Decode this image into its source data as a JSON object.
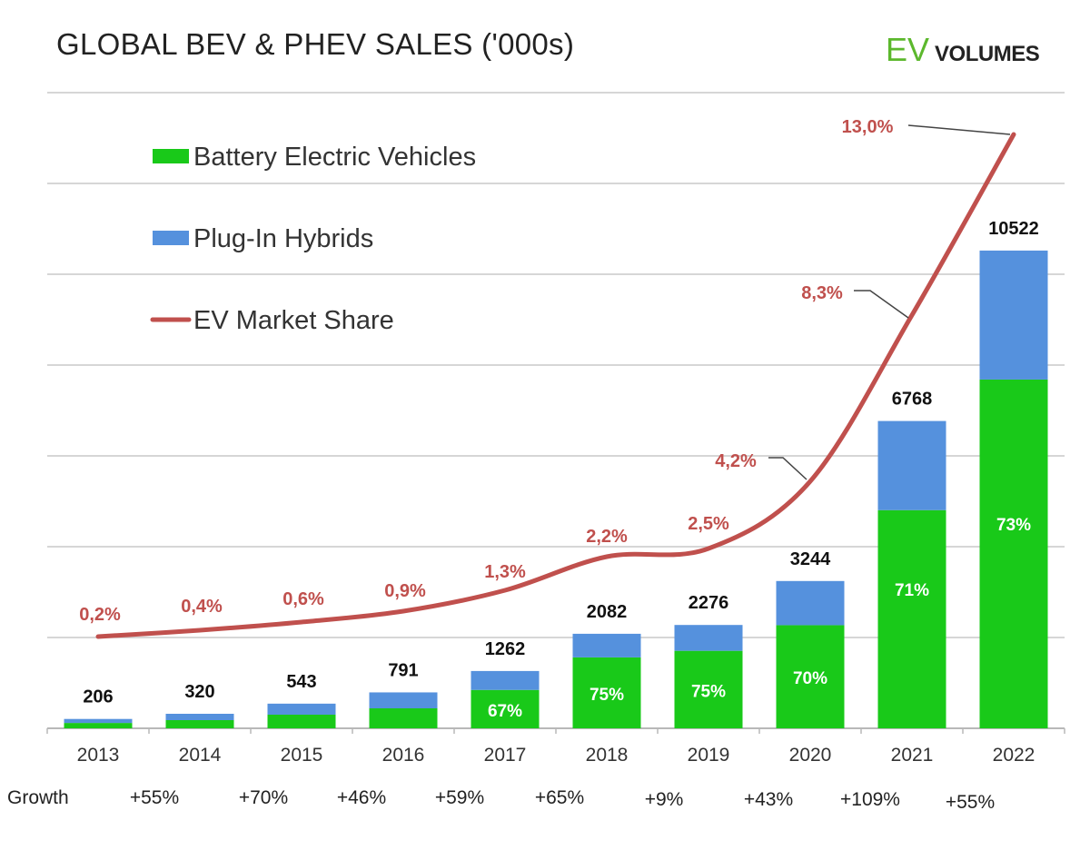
{
  "chart_data": {
    "type": "bar",
    "stacked": true,
    "title": "GLOBAL BEV & PHEV SALES ('000s)",
    "brand": {
      "part1": "EV",
      "part2": "VOLUMES"
    },
    "categories": [
      "2013",
      "2014",
      "2015",
      "2016",
      "2017",
      "2018",
      "2019",
      "2020",
      "2021",
      "2022"
    ],
    "totals": [
      206,
      320,
      543,
      791,
      1262,
      2082,
      2276,
      3244,
      6768,
      10522
    ],
    "total_labels": [
      "206",
      "320",
      "543",
      "791",
      "1262",
      "2082",
      "2276",
      "3244",
      "6768",
      "10522"
    ],
    "series": [
      {
        "name": "Battery Electric Vehicles",
        "values": [
          118,
          180,
          300,
          440,
          845,
          1562,
          1707,
          2271,
          4805,
          7681
        ],
        "color": "#19c919"
      },
      {
        "name": "Plug-In Hybrids",
        "values": [
          88,
          140,
          243,
          351,
          417,
          520,
          569,
          973,
          1963,
          2841
        ],
        "color": "#5591dd"
      }
    ],
    "bev_share_labels": [
      "",
      "",
      "",
      "",
      "67%",
      "75%",
      "75%",
      "70%",
      "71%",
      "73%"
    ],
    "line": {
      "name": "EV Market Share",
      "color": "#c0504d",
      "values": [
        0.2,
        0.4,
        0.6,
        0.9,
        1.3,
        2.2,
        2.5,
        4.2,
        8.3,
        13.0
      ],
      "labels": [
        "0,2%",
        "0,4%",
        "0,6%",
        "0,9%",
        "1,3%",
        "2,2%",
        "2,5%",
        "4,2%",
        "8,3%",
        "13,0%"
      ]
    },
    "growth": {
      "label": "Growth",
      "values": [
        "+55%",
        "+70%",
        "+46%",
        "+59%",
        "+65%",
        "+9%",
        "+43%",
        "+109%",
        "+55%"
      ]
    },
    "ylim": [
      0,
      14000
    ],
    "grid": true,
    "legend_position": "top-left"
  }
}
